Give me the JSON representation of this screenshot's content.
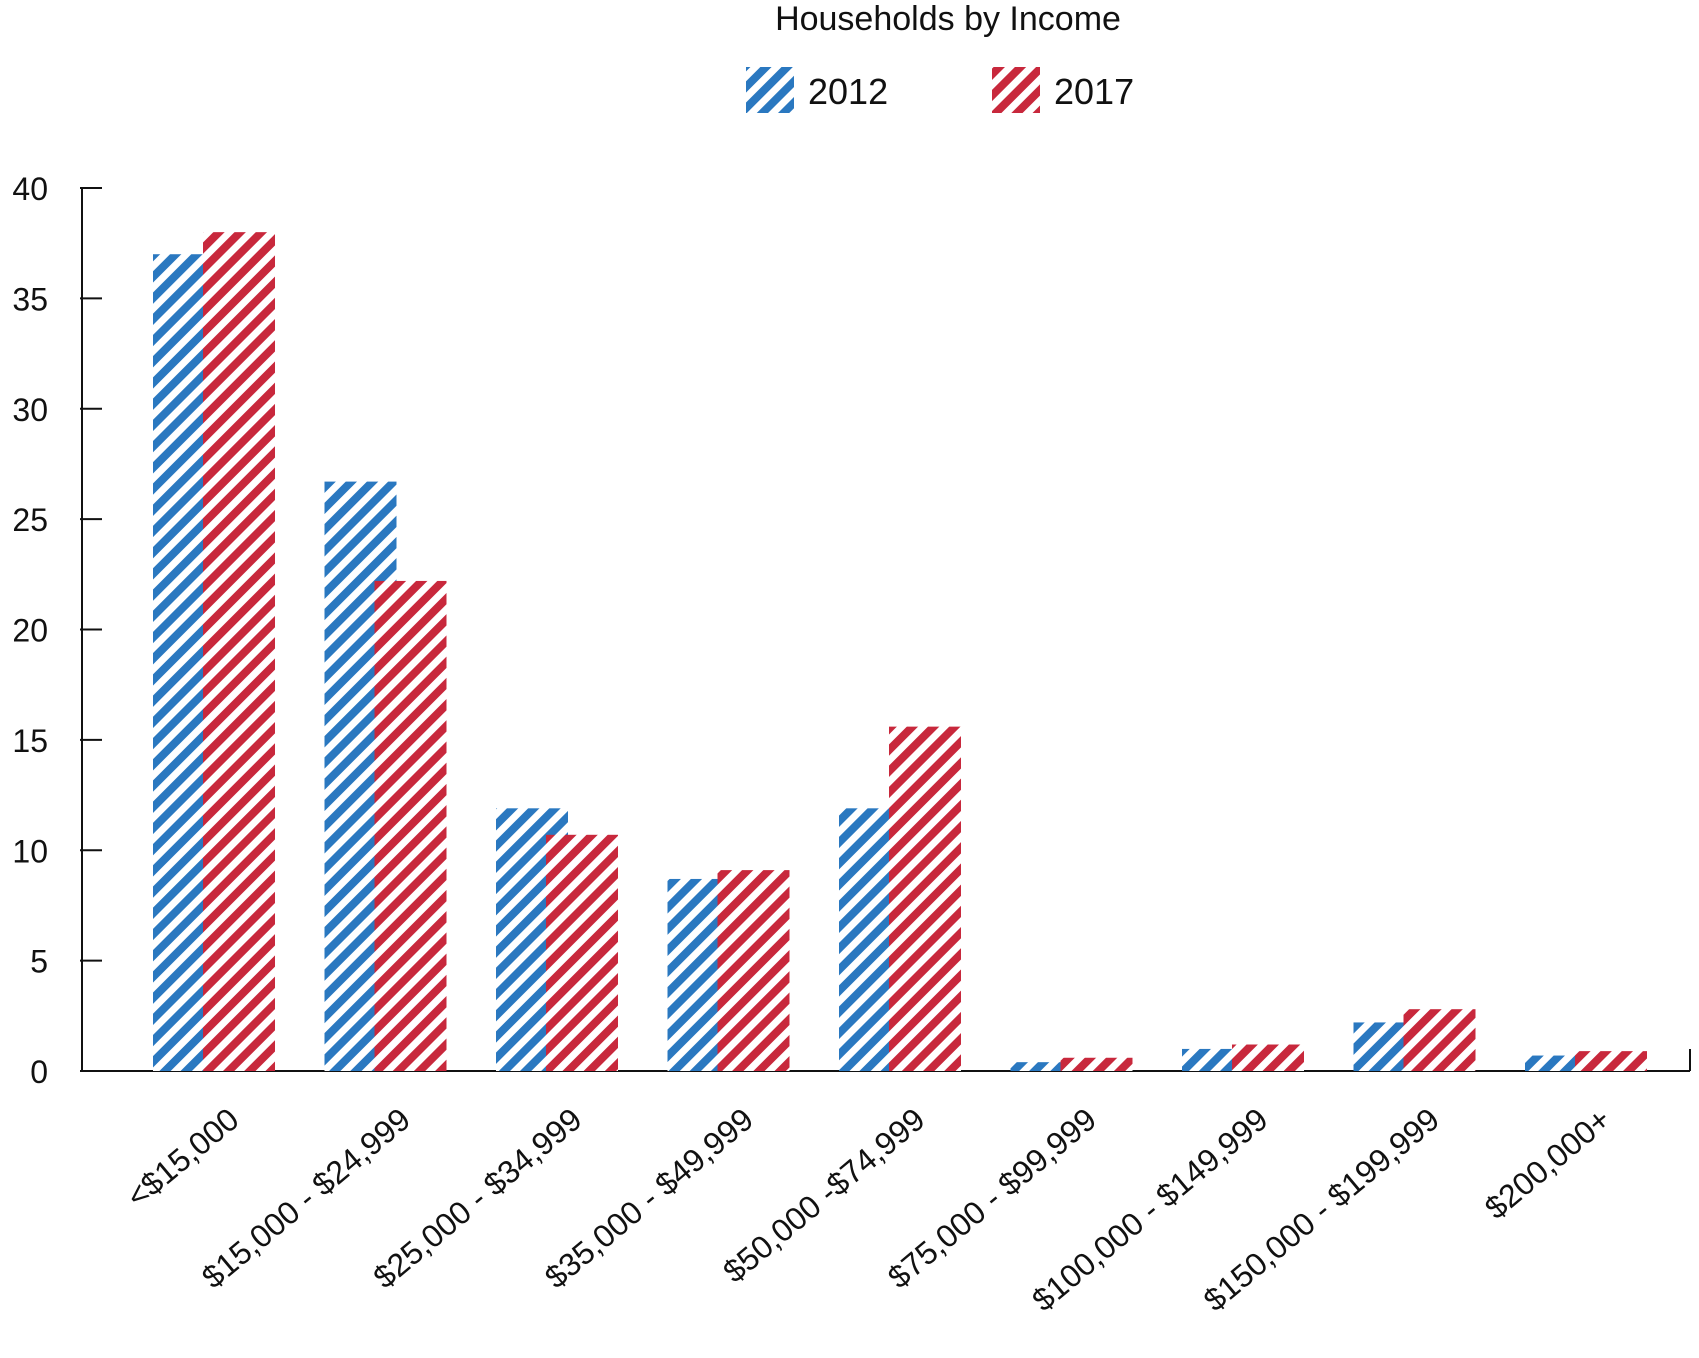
{
  "chart_data": {
    "type": "bar",
    "title": "Households by Income",
    "xlabel": "",
    "ylabel": "",
    "ylim": [
      0,
      40
    ],
    "yticks": [
      0,
      5,
      10,
      15,
      20,
      25,
      30,
      35,
      40
    ],
    "grid": false,
    "legend_position": "top-center",
    "categories": [
      "<$15,000",
      "$15,000 - $24,999",
      "$25,000 - $34,999",
      "$35,000 - $49,999",
      "$50,000 -$74,999",
      "$75,000 - $99,999",
      "$100,000 - $149,999",
      "$150,000 - $199,999",
      "$200,000+"
    ],
    "series": [
      {
        "name": "2012",
        "color": "#2a78c0",
        "values": [
          37.0,
          26.7,
          11.9,
          8.7,
          11.9,
          0.4,
          1.0,
          2.2,
          0.7
        ]
      },
      {
        "name": "2017",
        "color": "#c8283c",
        "values": [
          38.0,
          22.2,
          10.7,
          9.1,
          15.6,
          0.6,
          1.2,
          2.8,
          0.9
        ]
      }
    ]
  }
}
